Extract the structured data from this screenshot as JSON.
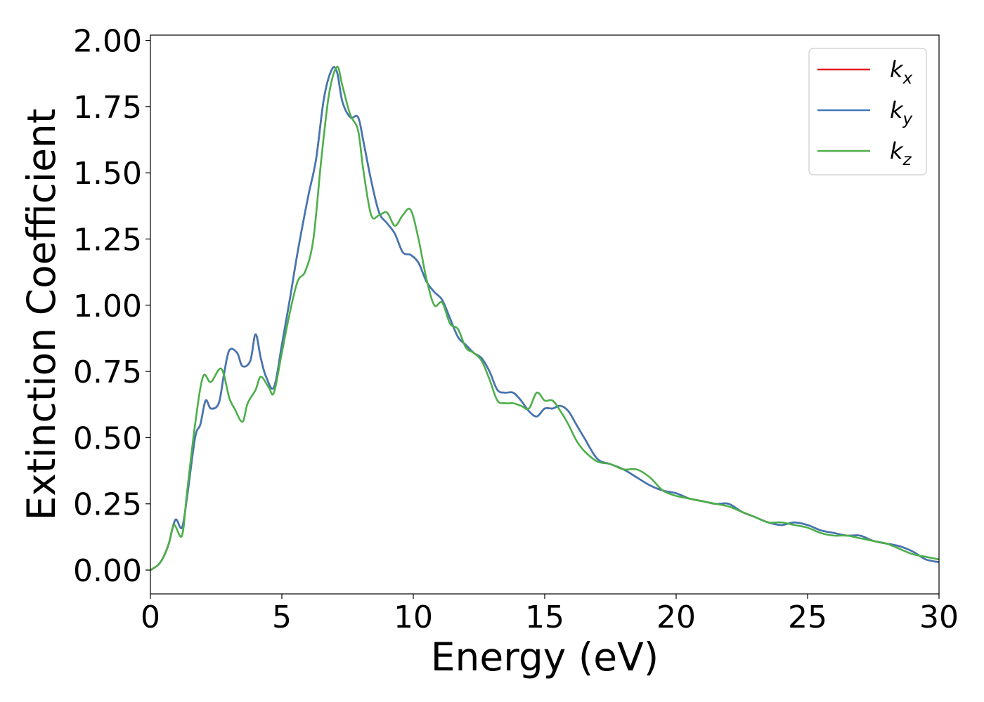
{
  "chart_data": {
    "type": "line",
    "title": "",
    "xlabel": "Energy (eV)",
    "ylabel": "Extinction Coefficient",
    "xlim": [
      0,
      30
    ],
    "ylim": [
      -0.09,
      2.02
    ],
    "xticks": [
      0,
      5,
      10,
      15,
      20,
      25,
      30
    ],
    "xtick_labels": [
      "0",
      "5",
      "10",
      "15",
      "20",
      "25",
      "30"
    ],
    "yticks": [
      0,
      0.25,
      0.5,
      0.75,
      1.0,
      1.25,
      1.5,
      1.75,
      2.0
    ],
    "ytick_labels": [
      "0.00",
      "0.25",
      "0.50",
      "0.75",
      "1.00",
      "1.25",
      "1.50",
      "1.75",
      "2.00"
    ],
    "grid": false,
    "legend": {
      "position": "top-right",
      "entries": [
        {
          "base": "k",
          "sub": "x",
          "color": "#e41a1c"
        },
        {
          "base": "k",
          "sub": "y",
          "color": "#3f78b5"
        },
        {
          "base": "k",
          "sub": "z",
          "color": "#4daf4a"
        }
      ]
    },
    "series": [
      {
        "name": "kx",
        "color": "#e41a1c",
        "x": [
          0,
          0.3,
          0.5,
          0.7,
          0.95,
          1.2,
          1.4,
          1.7,
          1.9,
          2.1,
          2.3,
          2.6,
          2.8,
          3.0,
          3.3,
          3.5,
          3.8,
          4.0,
          4.2,
          4.4,
          4.7,
          5.0,
          5.3,
          5.6,
          6.0,
          6.3,
          6.6,
          6.9,
          7.1,
          7.3,
          7.6,
          7.9,
          8.1,
          8.4,
          8.7,
          9.0,
          9.3,
          9.6,
          9.9,
          10.2,
          10.5,
          10.8,
          11.1,
          11.4,
          11.7,
          12.0,
          12.3,
          12.6,
          12.9,
          13.2,
          13.5,
          13.8,
          14.1,
          14.4,
          14.7,
          15.0,
          15.3,
          15.6,
          15.9,
          16.2,
          16.5,
          17.0,
          17.5,
          18.0,
          18.5,
          19.0,
          19.5,
          20.0,
          20.5,
          21.0,
          21.5,
          22.0,
          22.5,
          23.0,
          23.5,
          24.0,
          24.5,
          25.0,
          25.5,
          26.0,
          26.5,
          27.0,
          27.5,
          28.0,
          28.5,
          29.0,
          29.5,
          30.0
        ],
        "y": [
          0.0,
          0.02,
          0.05,
          0.1,
          0.19,
          0.16,
          0.28,
          0.5,
          0.55,
          0.64,
          0.61,
          0.63,
          0.74,
          0.83,
          0.82,
          0.77,
          0.79,
          0.89,
          0.8,
          0.73,
          0.69,
          0.85,
          1.02,
          1.2,
          1.41,
          1.55,
          1.78,
          1.89,
          1.88,
          1.77,
          1.71,
          1.71,
          1.62,
          1.47,
          1.35,
          1.31,
          1.27,
          1.2,
          1.19,
          1.16,
          1.09,
          1.05,
          1.02,
          0.95,
          0.88,
          0.85,
          0.82,
          0.8,
          0.75,
          0.68,
          0.67,
          0.67,
          0.64,
          0.6,
          0.58,
          0.61,
          0.61,
          0.62,
          0.6,
          0.55,
          0.5,
          0.42,
          0.4,
          0.38,
          0.35,
          0.32,
          0.3,
          0.29,
          0.27,
          0.26,
          0.25,
          0.25,
          0.22,
          0.2,
          0.18,
          0.17,
          0.18,
          0.17,
          0.15,
          0.14,
          0.13,
          0.13,
          0.11,
          0.1,
          0.09,
          0.07,
          0.04,
          0.03
        ]
      },
      {
        "name": "ky",
        "color": "#3f78b5",
        "x": [
          0,
          0.3,
          0.5,
          0.7,
          0.95,
          1.2,
          1.4,
          1.7,
          1.9,
          2.1,
          2.3,
          2.6,
          2.8,
          3.0,
          3.3,
          3.5,
          3.8,
          4.0,
          4.2,
          4.4,
          4.7,
          5.0,
          5.3,
          5.6,
          6.0,
          6.3,
          6.6,
          6.9,
          7.1,
          7.3,
          7.6,
          7.9,
          8.1,
          8.4,
          8.7,
          9.0,
          9.3,
          9.6,
          9.9,
          10.2,
          10.5,
          10.8,
          11.1,
          11.4,
          11.7,
          12.0,
          12.3,
          12.6,
          12.9,
          13.2,
          13.5,
          13.8,
          14.1,
          14.4,
          14.7,
          15.0,
          15.3,
          15.6,
          15.9,
          16.2,
          16.5,
          17.0,
          17.5,
          18.0,
          18.5,
          19.0,
          19.5,
          20.0,
          20.5,
          21.0,
          21.5,
          22.0,
          22.5,
          23.0,
          23.5,
          24.0,
          24.5,
          25.0,
          25.5,
          26.0,
          26.5,
          27.0,
          27.5,
          28.0,
          28.5,
          29.0,
          29.5,
          30.0
        ],
        "y": [
          0.0,
          0.02,
          0.05,
          0.1,
          0.19,
          0.16,
          0.28,
          0.5,
          0.55,
          0.64,
          0.61,
          0.63,
          0.74,
          0.83,
          0.82,
          0.77,
          0.79,
          0.89,
          0.8,
          0.73,
          0.69,
          0.85,
          1.02,
          1.2,
          1.41,
          1.55,
          1.78,
          1.89,
          1.88,
          1.77,
          1.71,
          1.71,
          1.62,
          1.47,
          1.35,
          1.31,
          1.27,
          1.2,
          1.19,
          1.16,
          1.09,
          1.05,
          1.02,
          0.95,
          0.88,
          0.85,
          0.82,
          0.8,
          0.75,
          0.68,
          0.67,
          0.67,
          0.64,
          0.6,
          0.58,
          0.61,
          0.61,
          0.62,
          0.6,
          0.55,
          0.5,
          0.42,
          0.4,
          0.38,
          0.35,
          0.32,
          0.3,
          0.29,
          0.27,
          0.26,
          0.25,
          0.25,
          0.22,
          0.2,
          0.18,
          0.17,
          0.18,
          0.17,
          0.15,
          0.14,
          0.13,
          0.13,
          0.11,
          0.1,
          0.09,
          0.07,
          0.04,
          0.03
        ]
      },
      {
        "name": "kz",
        "color": "#4daf4a",
        "x": [
          0,
          0.3,
          0.5,
          0.7,
          0.9,
          1.2,
          1.4,
          1.7,
          2.0,
          2.3,
          2.7,
          3.0,
          3.2,
          3.5,
          3.7,
          4.0,
          4.2,
          4.5,
          4.7,
          5.0,
          5.3,
          5.6,
          5.9,
          6.2,
          6.5,
          6.8,
          7.1,
          7.3,
          7.6,
          7.9,
          8.1,
          8.4,
          8.7,
          9.0,
          9.3,
          9.6,
          9.9,
          10.2,
          10.5,
          10.8,
          11.1,
          11.4,
          11.7,
          12.0,
          12.3,
          12.6,
          12.9,
          13.2,
          13.5,
          13.8,
          14.1,
          14.4,
          14.7,
          15.0,
          15.3,
          15.6,
          15.9,
          16.2,
          16.5,
          17.0,
          17.5,
          18.0,
          18.5,
          19.0,
          19.5,
          20.0,
          20.5,
          21.0,
          21.5,
          22.0,
          22.5,
          23.0,
          23.5,
          24.0,
          24.5,
          25.0,
          25.5,
          26.0,
          26.5,
          27.0,
          27.5,
          28.0,
          28.5,
          29.0,
          29.5,
          30.0
        ],
        "y": [
          0.0,
          0.02,
          0.05,
          0.1,
          0.17,
          0.13,
          0.3,
          0.55,
          0.73,
          0.71,
          0.76,
          0.65,
          0.61,
          0.56,
          0.63,
          0.68,
          0.73,
          0.69,
          0.67,
          0.82,
          0.97,
          1.09,
          1.13,
          1.25,
          1.55,
          1.8,
          1.9,
          1.83,
          1.72,
          1.66,
          1.51,
          1.34,
          1.34,
          1.35,
          1.3,
          1.34,
          1.36,
          1.25,
          1.1,
          1.0,
          1.01,
          0.93,
          0.91,
          0.84,
          0.82,
          0.79,
          0.72,
          0.64,
          0.63,
          0.63,
          0.62,
          0.61,
          0.67,
          0.64,
          0.64,
          0.6,
          0.55,
          0.49,
          0.45,
          0.41,
          0.4,
          0.38,
          0.38,
          0.35,
          0.3,
          0.28,
          0.27,
          0.26,
          0.25,
          0.24,
          0.22,
          0.2,
          0.18,
          0.18,
          0.17,
          0.16,
          0.14,
          0.13,
          0.13,
          0.12,
          0.11,
          0.1,
          0.08,
          0.06,
          0.05,
          0.04
        ]
      }
    ]
  }
}
